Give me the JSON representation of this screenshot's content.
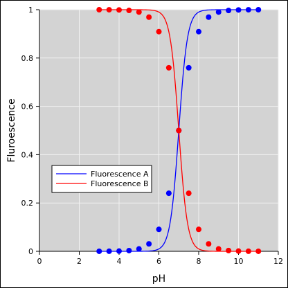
{
  "chart_data": {
    "type": "line",
    "title": "",
    "xlabel": "pH",
    "ylabel": "Fluroescence",
    "xlim": [
      0,
      12
    ],
    "ylim": [
      0,
      1
    ],
    "xticks": [
      0,
      2,
      4,
      6,
      8,
      10,
      12
    ],
    "yticks": [
      0,
      0.2,
      0.4,
      0.6,
      0.8,
      1
    ],
    "grid": true,
    "legend_position": "left-middle",
    "background": "#d3d3d3",
    "series": [
      {
        "name": "Fluorescence A",
        "color": "#0000ff",
        "x": [
          3,
          3.5,
          4,
          4.5,
          5,
          5.5,
          6,
          6.5,
          7,
          7.5,
          8,
          8.5,
          9,
          9.5,
          10,
          10.5,
          11
        ],
        "y": [
          0.0001,
          0.0003,
          0.001,
          0.003,
          0.0099,
          0.0308,
          0.0909,
          0.2403,
          0.5,
          0.7597,
          0.9091,
          0.9692,
          0.9901,
          0.9968,
          0.999,
          0.9997,
          0.9999
        ]
      },
      {
        "name": "Fluorescence B",
        "color": "#ff0000",
        "x": [
          3,
          3.5,
          4,
          4.5,
          5,
          5.5,
          6,
          6.5,
          7,
          7.5,
          8,
          8.5,
          9,
          9.5,
          10,
          10.5,
          11
        ],
        "y": [
          0.9999,
          0.9997,
          0.999,
          0.997,
          0.9901,
          0.9692,
          0.9091,
          0.7597,
          0.5,
          0.2403,
          0.0909,
          0.0308,
          0.0099,
          0.0032,
          0.001,
          0.0003,
          0.0001
        ]
      }
    ]
  }
}
